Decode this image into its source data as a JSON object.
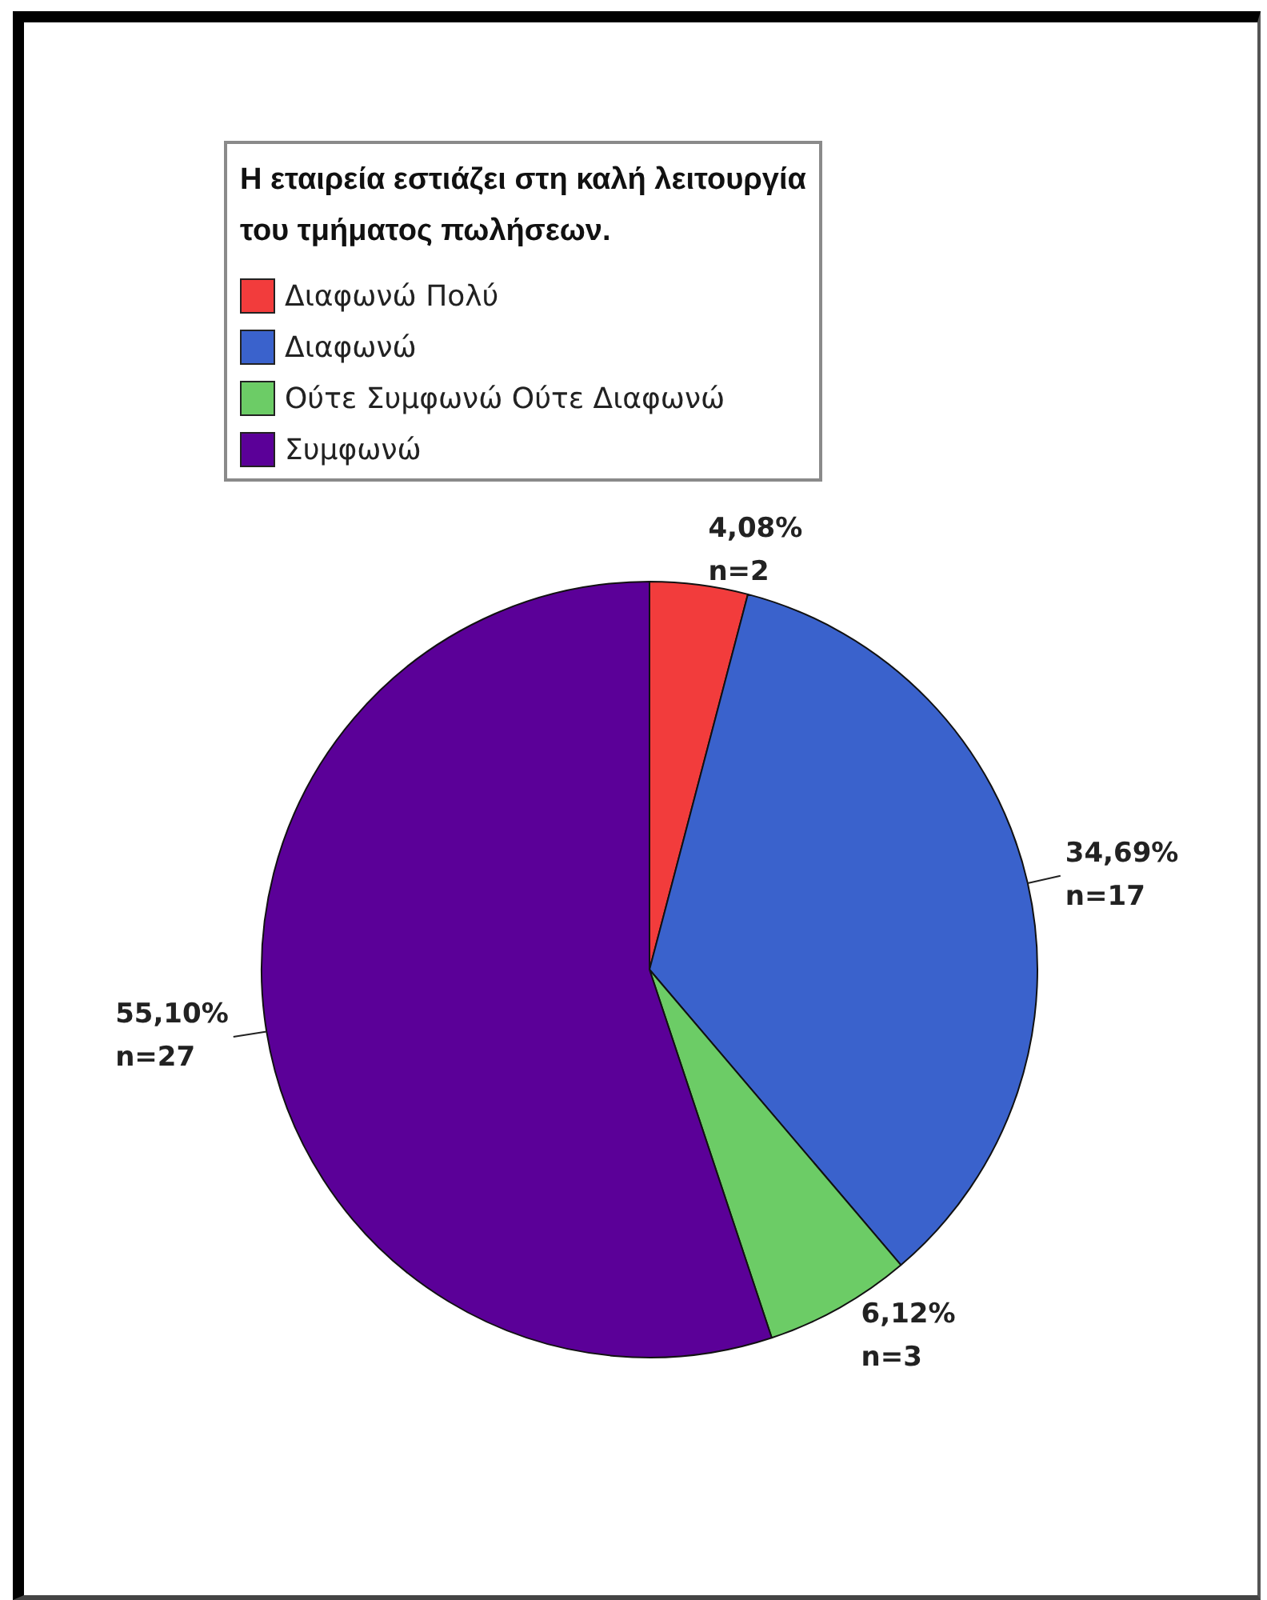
{
  "chart_data": {
    "type": "pie",
    "legend_title": "Η εταιρεία εστιάζει στη καλή λειτουργία του τμήματος πωλήσεων.",
    "categories": [
      "Διαφωνώ Πολύ",
      "Διαφωνώ",
      "Ούτε Συμφωνώ Ούτε Διαφωνώ",
      "Συμφωνώ"
    ],
    "values": [
      2,
      17,
      3,
      27
    ],
    "colors": [
      "#f23c3c",
      "#3a62cc",
      "#6ccc66",
      "#5b0098"
    ],
    "value_labels": [
      "4,08%\nn=2",
      "34,69%\nn=17",
      "6,12%\nn=3",
      "55,10%\nn=27"
    ],
    "legend": "top left"
  }
}
